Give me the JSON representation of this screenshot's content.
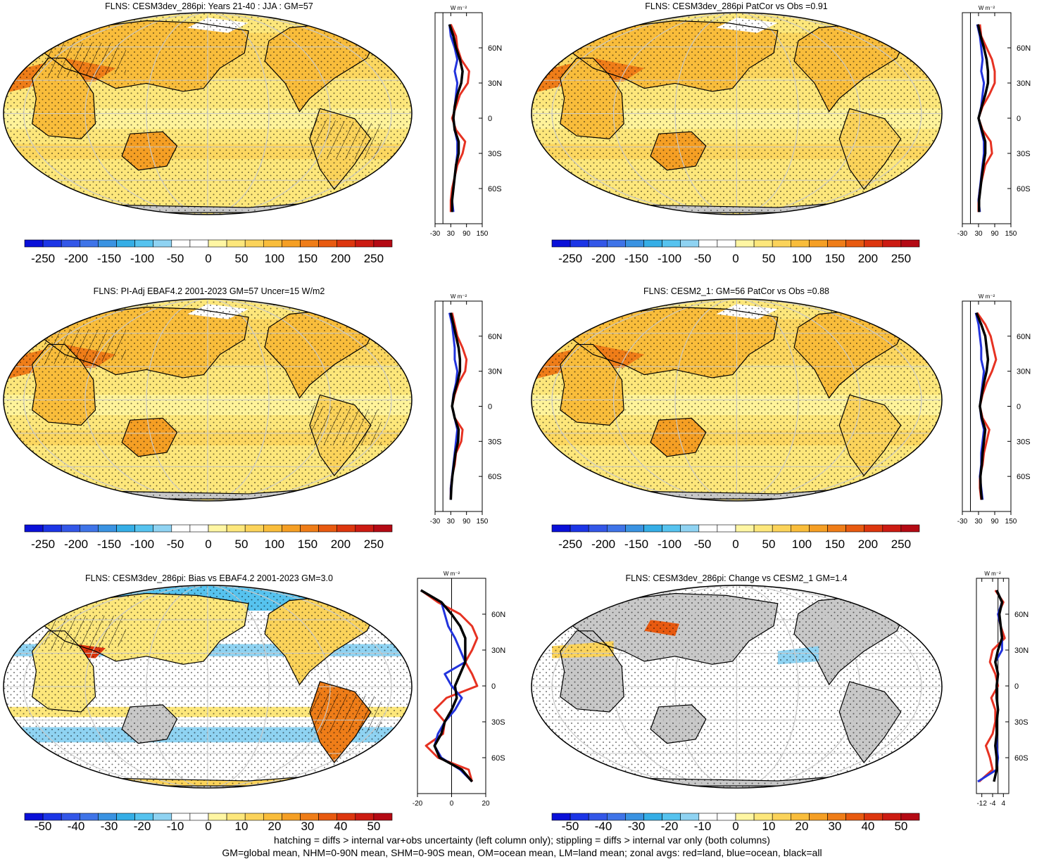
{
  "colors": {
    "diverging": [
      "#0a10d8",
      "#1c35e6",
      "#3357e8",
      "#3f74e8",
      "#3a93e2",
      "#35aee6",
      "#56c3ef",
      "#8fd3f2",
      "#ffffff",
      "#ffffff",
      "#fff6a3",
      "#fde77b",
      "#fbd35a",
      "#f9bd3b",
      "#f59f24",
      "#ef7d18",
      "#e85a10",
      "#dd360e",
      "#cc1b12",
      "#b40a14"
    ],
    "land_line": "#e63222",
    "ocean_line": "#2233dd",
    "all_line": "#000000",
    "grid": "#c8c8c8",
    "missing": "#c8c8c8"
  },
  "panels": [
    {
      "id": "p1",
      "title": "FLNS: CESM3dev_286pi: Years 21-40 : JJA : GM=57",
      "field": "abs",
      "cbar_labels": [
        "-250",
        "-200",
        "-150",
        "-100",
        "-50",
        "0",
        "50",
        "100",
        "150",
        "200",
        "250"
      ],
      "zonal_ticks": [
        "-30",
        "30",
        "90",
        "150"
      ],
      "zonal_xlim": [
        -30,
        150
      ],
      "zonal_units": "W m⁻²",
      "lat_labels": [
        "60N",
        "30N",
        "0",
        "30S",
        "60S"
      ],
      "hatching": true
    },
    {
      "id": "p2",
      "title": "FLNS: CESM3dev_286pi PatCor vs Obs =0.91",
      "field": "abs",
      "cbar_labels": [
        "-250",
        "-200",
        "-150",
        "-100",
        "-50",
        "0",
        "50",
        "100",
        "150",
        "200",
        "250"
      ],
      "zonal_ticks": [
        "-30",
        "30",
        "90",
        "150"
      ],
      "zonal_xlim": [
        -30,
        150
      ],
      "zonal_units": "W m⁻²",
      "lat_labels": [
        "60N",
        "30N",
        "0",
        "30S",
        "60S"
      ],
      "hatching": false
    },
    {
      "id": "p3",
      "title": "FLNS: PI-Adj EBAF4.2 2001-2023 GM=57 Uncer=15 W/m2",
      "field": "abs",
      "cbar_labels": [
        "-250",
        "-200",
        "-150",
        "-100",
        "-50",
        "0",
        "50",
        "100",
        "150",
        "200",
        "250"
      ],
      "zonal_ticks": [
        "-30",
        "30",
        "90",
        "150"
      ],
      "zonal_xlim": [
        -30,
        150
      ],
      "zonal_units": "W m⁻²",
      "lat_labels": [
        "60N",
        "30N",
        "0",
        "30S",
        "60S"
      ],
      "hatching": true
    },
    {
      "id": "p4",
      "title": "FLNS: CESM2_1: GM=56 PatCor vs Obs =0.88",
      "field": "abs",
      "cbar_labels": [
        "-250",
        "-200",
        "-150",
        "-100",
        "-50",
        "0",
        "50",
        "100",
        "150",
        "200",
        "250"
      ],
      "zonal_ticks": [
        "-30",
        "30",
        "90",
        "150"
      ],
      "zonal_xlim": [
        -30,
        150
      ],
      "zonal_units": "W m⁻²",
      "lat_labels": [
        "60N",
        "30N",
        "0",
        "30S",
        "60S"
      ],
      "hatching": false
    },
    {
      "id": "p5",
      "title": "FLNS: CESM3dev_286pi: Bias vs EBAF4.2 2001-2023 GM=3.0",
      "field": "bias",
      "cbar_labels": [
        "-50",
        "-40",
        "-30",
        "-20",
        "-10",
        "0",
        "10",
        "20",
        "30",
        "40",
        "50"
      ],
      "zonal_ticks": [
        "-20",
        "0",
        "20"
      ],
      "zonal_xlim": [
        -20,
        20
      ],
      "zonal_units": "W m⁻²",
      "lat_labels": [
        "60N",
        "30N",
        "0",
        "30S",
        "60S"
      ],
      "hatching": true
    },
    {
      "id": "p6",
      "title": "FLNS: CESM3dev_286pi: Change vs CESM2_1 GM=1.4",
      "field": "change",
      "cbar_labels": [
        "-50",
        "-40",
        "-30",
        "-20",
        "-10",
        "0",
        "10",
        "20",
        "30",
        "40",
        "50"
      ],
      "zonal_ticks": [
        "-12",
        "-4",
        "4"
      ],
      "zonal_xlim": [
        -16,
        8
      ],
      "zonal_units": "W m⁻²",
      "lat_labels": [
        "60N",
        "30N",
        "0",
        "30S",
        "60S"
      ],
      "hatching": false
    }
  ],
  "chart_data": [
    {
      "type": "line",
      "panel": "p1",
      "xlabel": "W m⁻²",
      "xlim": [
        -30,
        150
      ],
      "ylim": [
        -90,
        90
      ],
      "lat": [
        80,
        70,
        60,
        50,
        40,
        30,
        20,
        10,
        0,
        -10,
        -20,
        -30,
        -40,
        -50,
        -60,
        -70,
        -80
      ],
      "series": [
        {
          "name": "land",
          "values": [
            30,
            50,
            55,
            70,
            100,
            95,
            65,
            50,
            35,
            50,
            85,
            75,
            55,
            45,
            35,
            30,
            30
          ]
        },
        {
          "name": "ocean",
          "values": [
            25,
            30,
            45,
            55,
            45,
            55,
            50,
            45,
            40,
            45,
            55,
            55,
            50,
            45,
            40,
            35,
            40
          ]
        },
        {
          "name": "all",
          "values": [
            25,
            40,
            50,
            65,
            75,
            70,
            55,
            45,
            40,
            45,
            60,
            60,
            50,
            45,
            40,
            35,
            35
          ]
        }
      ]
    },
    {
      "type": "line",
      "panel": "p2",
      "xlabel": "W m⁻²",
      "xlim": [
        -30,
        150
      ],
      "ylim": [
        -90,
        90
      ],
      "lat": [
        80,
        70,
        60,
        50,
        40,
        30,
        20,
        10,
        0,
        -10,
        -20,
        -30,
        -40,
        -50,
        -60,
        -70,
        -80
      ],
      "series": [
        {
          "name": "land",
          "values": [
            35,
            40,
            60,
            80,
            90,
            90,
            70,
            45,
            30,
            45,
            75,
            80,
            55,
            45,
            35,
            30,
            30
          ]
        },
        {
          "name": "ocean",
          "values": [
            25,
            35,
            40,
            45,
            40,
            50,
            45,
            40,
            30,
            40,
            50,
            50,
            45,
            40,
            35,
            30,
            35
          ]
        },
        {
          "name": "all",
          "values": [
            28,
            38,
            50,
            60,
            65,
            65,
            55,
            42,
            30,
            42,
            55,
            55,
            48,
            42,
            37,
            32,
            32
          ]
        }
      ]
    },
    {
      "type": "line",
      "panel": "p3",
      "xlabel": "W m⁻²",
      "xlim": [
        -30,
        150
      ],
      "ylim": [
        -90,
        90
      ],
      "lat": [
        80,
        70,
        60,
        50,
        40,
        30,
        20,
        10,
        0,
        -10,
        -20,
        -30,
        -40,
        -50,
        -60,
        -70,
        -80
      ],
      "series": [
        {
          "name": "land",
          "values": [
            35,
            45,
            55,
            75,
            90,
            85,
            60,
            45,
            35,
            45,
            75,
            70,
            50,
            45,
            35,
            30,
            30
          ]
        },
        {
          "name": "ocean",
          "values": [
            25,
            35,
            40,
            45,
            45,
            55,
            50,
            40,
            35,
            45,
            55,
            50,
            45,
            40,
            35,
            30,
            30
          ]
        },
        {
          "name": "all",
          "values": [
            30,
            40,
            50,
            60,
            65,
            65,
            55,
            42,
            35,
            45,
            60,
            58,
            48,
            42,
            36,
            32,
            30
          ]
        }
      ]
    },
    {
      "type": "line",
      "panel": "p4",
      "xlabel": "W m⁻²",
      "xlim": [
        -30,
        150
      ],
      "ylim": [
        -90,
        90
      ],
      "lat": [
        80,
        70,
        60,
        50,
        40,
        30,
        20,
        10,
        0,
        -10,
        -20,
        -30,
        -40,
        -50,
        -60,
        -70,
        -80
      ],
      "series": [
        {
          "name": "land",
          "values": [
            25,
            55,
            75,
            85,
            95,
            80,
            60,
            45,
            35,
            45,
            70,
            60,
            50,
            45,
            35,
            35,
            40
          ]
        },
        {
          "name": "ocean",
          "values": [
            20,
            30,
            35,
            40,
            40,
            50,
            45,
            40,
            35,
            40,
            50,
            45,
            40,
            40,
            35,
            40,
            45
          ]
        },
        {
          "name": "all",
          "values": [
            22,
            40,
            55,
            60,
            65,
            60,
            50,
            42,
            35,
            42,
            55,
            50,
            45,
            42,
            37,
            38,
            42
          ]
        }
      ]
    },
    {
      "type": "line",
      "panel": "p5",
      "xlabel": "W m⁻²",
      "xlim": [
        -20,
        20
      ],
      "ylim": [
        -90,
        90
      ],
      "lat": [
        80,
        70,
        60,
        50,
        40,
        30,
        20,
        10,
        0,
        -10,
        -20,
        -30,
        -40,
        -50,
        -60,
        -70,
        -80
      ],
      "series": [
        {
          "name": "land",
          "values": [
            -18,
            -8,
            5,
            12,
            15,
            12,
            8,
            12,
            15,
            -3,
            -10,
            -4,
            -5,
            -15,
            -8,
            10,
            12
          ]
        },
        {
          "name": "ocean",
          "values": [
            -18,
            -6,
            -4,
            -2,
            2,
            5,
            8,
            -4,
            0,
            6,
            2,
            -4,
            -8,
            -10,
            -6,
            5,
            12
          ]
        },
        {
          "name": "all",
          "values": [
            -18,
            -6,
            0,
            5,
            8,
            8,
            8,
            5,
            2,
            3,
            0,
            -4,
            -6,
            -10,
            -7,
            6,
            12
          ]
        }
      ]
    },
    {
      "type": "line",
      "panel": "p6",
      "xlabel": "W m⁻²",
      "xlim": [
        -16,
        8
      ],
      "ylim": [
        -90,
        90
      ],
      "lat": [
        80,
        70,
        60,
        50,
        40,
        30,
        20,
        10,
        0,
        -10,
        -20,
        -30,
        -40,
        -50,
        -60,
        -70,
        -80
      ],
      "series": [
        {
          "name": "land",
          "values": [
            -2,
            4,
            0,
            2,
            5,
            -4,
            -6,
            -2,
            0,
            -5,
            -2,
            -2,
            -4,
            -9,
            -6,
            -4,
            -14
          ]
        },
        {
          "name": "ocean",
          "values": [
            -1,
            3,
            0,
            2,
            3,
            3,
            -2,
            0,
            -1,
            -1,
            0,
            -1,
            -1,
            -1,
            0,
            -1,
            -15
          ]
        },
        {
          "name": "all",
          "values": [
            -1,
            3,
            1,
            2,
            3,
            0,
            -2,
            0,
            -1,
            -1,
            0,
            -1,
            -1,
            -2,
            -1,
            -1,
            -3
          ]
        }
      ]
    }
  ],
  "footer": {
    "line1": "hatching = diffs > internal var+obs uncertainty (left column only); stippling = diffs > internal var only (both columns)",
    "line2": "GM=global mean, NHM=0-90N mean, SHM=0-90S mean, OM=ocean mean, LM=land mean; zonal avgs: red=land, blue=ocean, black=all"
  }
}
